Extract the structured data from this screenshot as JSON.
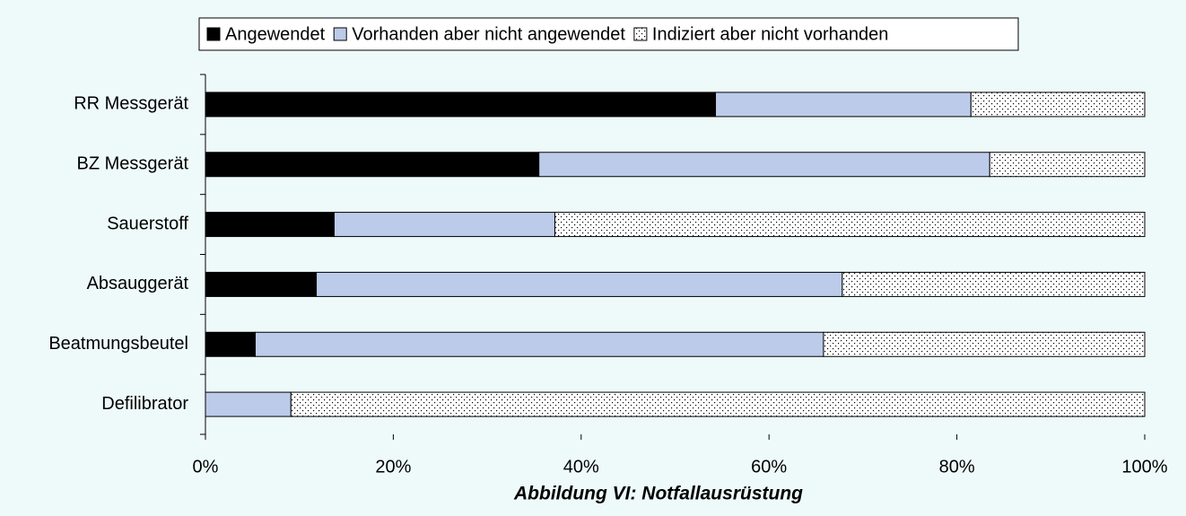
{
  "chart_data": {
    "type": "stacked_bar_horizontal",
    "title": "Abbildung VI: Notfallausrüstung",
    "categories": [
      "RR Messgerät",
      "BZ Messgerät",
      "Sauerstoff",
      "Absauggerät",
      "Beatmungsbeutel",
      "Defilibrator"
    ],
    "series": [
      {
        "name": "Angewendet",
        "color": "#000000",
        "values": [
          54.3,
          35.5,
          13.7,
          11.8,
          5.3,
          0
        ]
      },
      {
        "name": "Vorhanden aber nicht angewendet",
        "color": "#bccbea",
        "values": [
          27.2,
          48,
          23.5,
          56,
          60.5,
          9.1
        ]
      },
      {
        "name": "Indiziert aber nicht vorhanden",
        "color": "#ffffff",
        "pattern": "dotted",
        "values": [
          18.5,
          16.5,
          62.8,
          32.2,
          34.2,
          90.9
        ]
      }
    ],
    "xlim": [
      0,
      100
    ],
    "xticks": [
      {
        "value": 0,
        "label": "0%"
      },
      {
        "value": 20,
        "label": "20%"
      },
      {
        "value": 40,
        "label": "40%"
      },
      {
        "value": 60,
        "label": "60%"
      },
      {
        "value": 80,
        "label": "80%"
      },
      {
        "value": 100,
        "label": "100%"
      }
    ],
    "legend": "top"
  }
}
